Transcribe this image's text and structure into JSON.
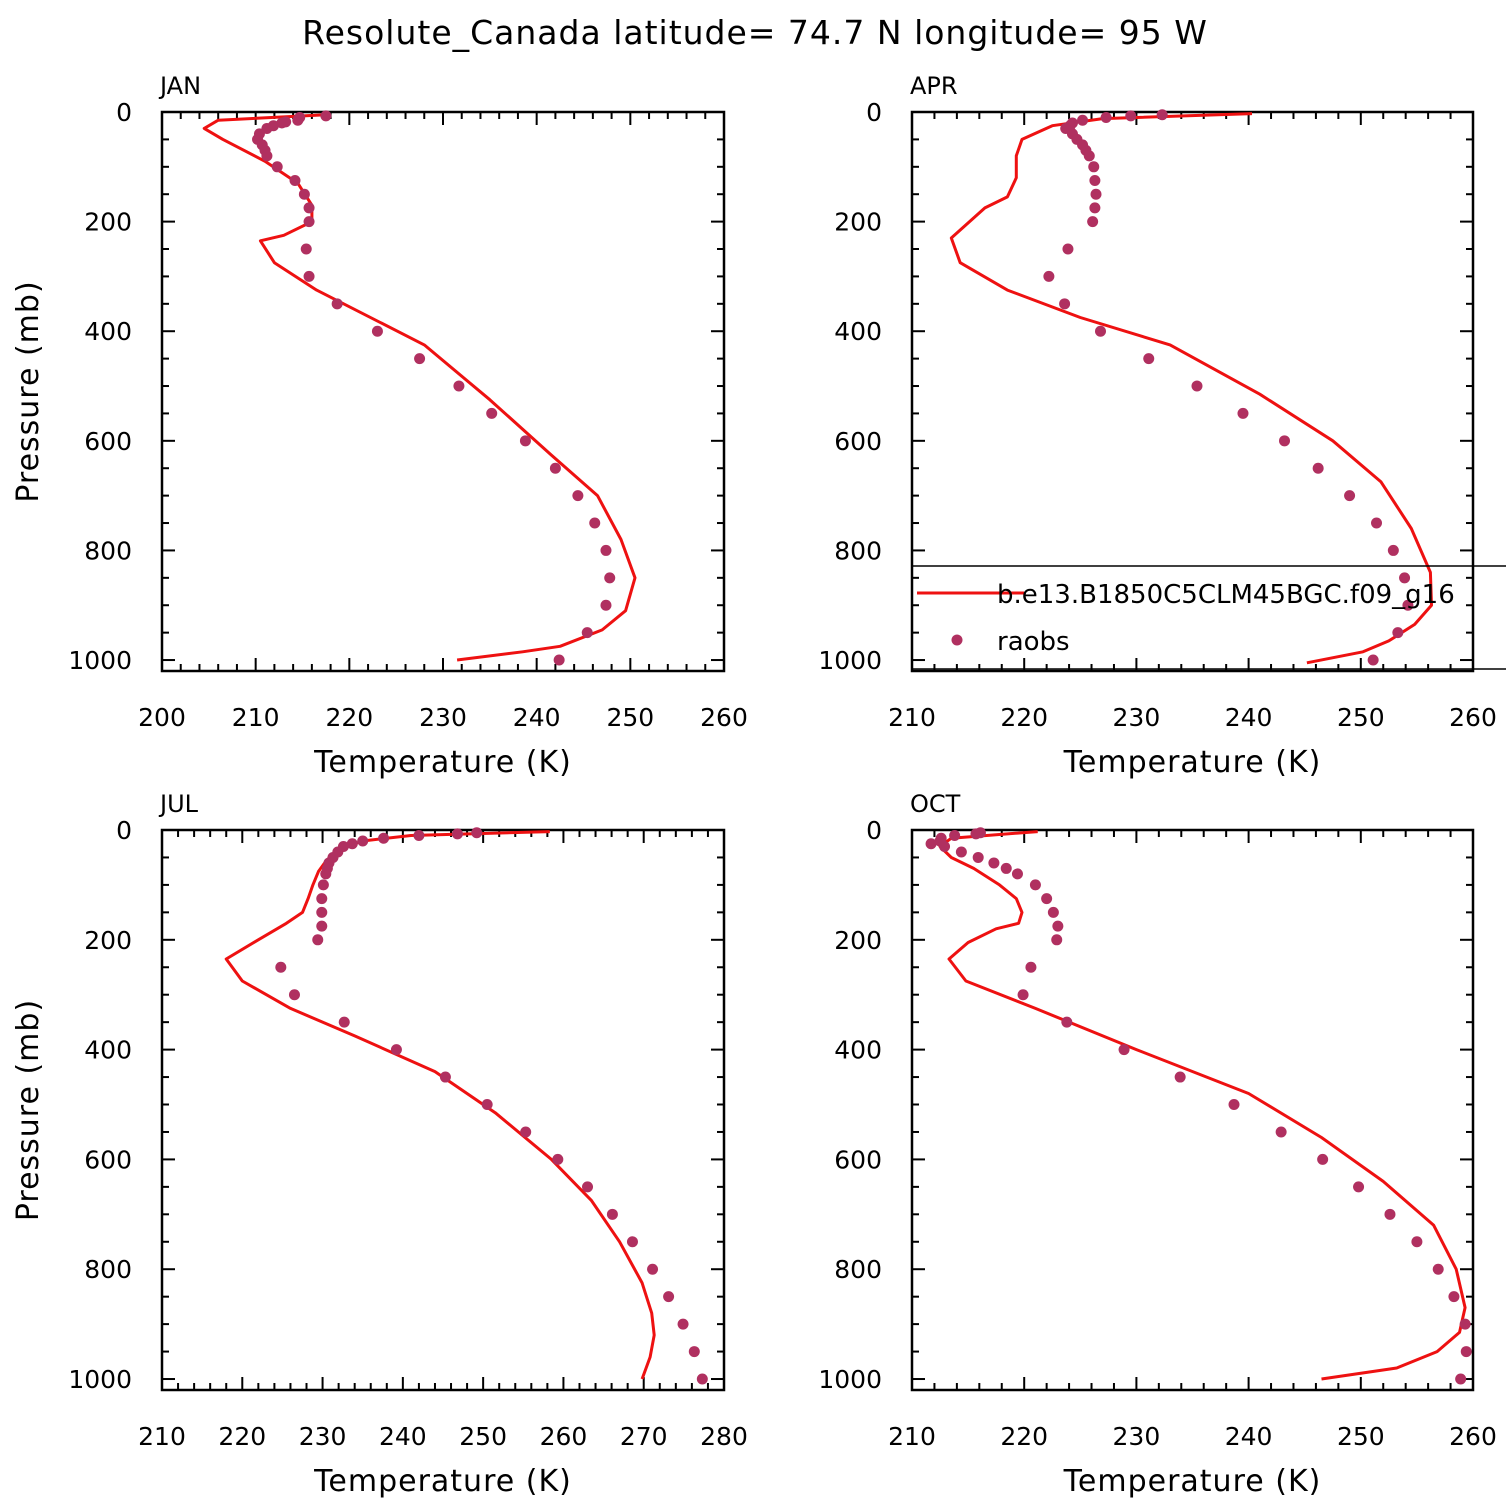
{
  "title": "Resolute_Canada  latitude= 74.7 N longitude= 95 W",
  "colors": {
    "model": "#ee1111",
    "obs": "#b03060",
    "axis": "#000000"
  },
  "legend": {
    "entries": [
      "b.e13.B1850C5CLM45BGC.f09_g16",
      "raobs"
    ]
  },
  "chart_data": [
    {
      "type": "line",
      "panel": "JAN",
      "title": "JAN",
      "xlabel": "Temperature (K)",
      "ylabel": "Pressure (mb)",
      "xlim": [
        200,
        260
      ],
      "ylim": [
        1020,
        0
      ],
      "xticks": [
        "200",
        "210",
        "220",
        "230",
        "240",
        "250",
        "260"
      ],
      "yticks": [
        "0",
        "200",
        "400",
        "600",
        "800",
        "1000"
      ],
      "series": [
        {
          "name": "b.e13.B1850C5CLM45BGC.f09_g16",
          "kind": "line",
          "x": [
            217.5,
            206,
            204.5,
            206.5,
            211,
            214.5,
            216,
            216,
            213,
            210.5,
            212,
            216.5,
            228,
            235,
            241.5,
            246.5,
            249,
            250.5,
            249.5,
            247,
            242.5,
            238.5,
            231.5
          ],
          "y": [
            5,
            15,
            30,
            50,
            90,
            130,
            170,
            200,
            225,
            235,
            275,
            325,
            425,
            525,
            625,
            700,
            780,
            850,
            910,
            945,
            975,
            985,
            1000
          ]
        },
        {
          "name": "raobs",
          "kind": "scatter",
          "x": [
            217.5,
            214.7,
            214.5,
            213.2,
            212.8,
            211.9,
            211.2,
            210.4,
            210.2,
            210.7,
            211.0,
            211.2,
            212.3,
            214.2,
            215.2,
            215.7,
            215.7,
            215.4,
            215.7,
            218.7,
            223.0,
            227.5,
            231.7,
            235.2,
            238.8,
            242.0,
            244.4,
            246.2,
            247.4,
            247.8,
            247.4,
            245.4,
            242.4
          ],
          "y": [
            7,
            10,
            15,
            18,
            20,
            25,
            30,
            40,
            50,
            60,
            70,
            80,
            100,
            125,
            150,
            175,
            200,
            250,
            300,
            350,
            400,
            450,
            500,
            550,
            600,
            650,
            700,
            750,
            800,
            850,
            900,
            950,
            1000
          ]
        }
      ]
    },
    {
      "type": "line",
      "panel": "APR",
      "title": "APR",
      "xlabel": "Temperature (K)",
      "ylabel": "",
      "xlim": [
        210,
        260
      ],
      "ylim": [
        1020,
        0
      ],
      "xticks": [
        "210",
        "220",
        "230",
        "240",
        "250",
        "260"
      ],
      "yticks": [
        "0",
        "200",
        "400",
        "600",
        "800",
        "1000"
      ],
      "series": [
        {
          "name": "b.e13.B1850C5CLM45BGC.f09_g16",
          "kind": "line",
          "x": [
            240.3,
            227,
            222.5,
            219.8,
            219.3,
            219.3,
            218.5,
            216.5,
            213.5,
            214.3,
            218.5,
            225,
            233,
            241,
            247.5,
            251.8,
            254.5,
            256.2,
            256.3,
            254.8,
            252.5,
            250.2,
            245.2
          ],
          "y": [
            3,
            12,
            25,
            50,
            80,
            120,
            155,
            175,
            230,
            275,
            325,
            375,
            425,
            515,
            600,
            675,
            760,
            840,
            900,
            935,
            965,
            985,
            1005
          ]
        },
        {
          "name": "raobs",
          "kind": "scatter",
          "x": [
            232.3,
            229.5,
            227.3,
            225.2,
            224.3,
            224.1,
            223.7,
            224.3,
            224.7,
            225.2,
            225.5,
            225.8,
            226.2,
            226.3,
            226.4,
            226.3,
            226.1,
            223.9,
            222.2,
            223.6,
            226.8,
            231.1,
            235.4,
            239.5,
            243.2,
            246.2,
            249.0,
            251.4,
            252.9,
            253.9,
            254.2,
            253.3,
            251.1
          ],
          "y": [
            5,
            7,
            10,
            15,
            20,
            25,
            30,
            40,
            50,
            60,
            70,
            80,
            100,
            125,
            150,
            175,
            200,
            250,
            300,
            350,
            400,
            450,
            500,
            550,
            600,
            650,
            700,
            750,
            800,
            850,
            900,
            950,
            1000
          ]
        }
      ]
    },
    {
      "type": "line",
      "panel": "JUL",
      "title": "JUL",
      "xlabel": "Temperature (K)",
      "ylabel": "Pressure (mb)",
      "xlim": [
        210,
        280
      ],
      "ylim": [
        1020,
        0
      ],
      "xticks": [
        "210",
        "220",
        "230",
        "240",
        "250",
        "260",
        "270",
        "280"
      ],
      "yticks": [
        "0",
        "200",
        "400",
        "600",
        "800",
        "1000"
      ],
      "series": [
        {
          "name": "b.e13.B1850C5CLM45BGC.f09_g16",
          "kind": "line",
          "x": [
            258.3,
            241,
            235,
            232,
            230.5,
            229.5,
            228.8,
            228.2,
            227.5,
            225.5,
            222,
            218,
            220,
            226,
            234,
            244,
            251.5,
            258.5,
            263.5,
            267,
            269.8,
            271,
            271.3,
            270.8,
            269.8
          ],
          "y": [
            3,
            10,
            20,
            35,
            55,
            75,
            100,
            125,
            150,
            170,
            200,
            235,
            275,
            325,
            375,
            440,
            515,
            600,
            675,
            750,
            825,
            880,
            920,
            960,
            1000
          ]
        },
        {
          "name": "raobs",
          "kind": "scatter",
          "x": [
            249.2,
            246.8,
            242.0,
            237.6,
            235.0,
            233.7,
            232.6,
            231.9,
            231.3,
            230.8,
            230.6,
            230.4,
            230.1,
            229.9,
            229.9,
            229.9,
            229.4,
            224.8,
            226.5,
            232.7,
            239.2,
            245.3,
            250.5,
            255.3,
            259.3,
            263.0,
            266.1,
            268.6,
            271.1,
            273.1,
            274.9,
            276.3,
            277.3
          ],
          "y": [
            5,
            7,
            10,
            15,
            20,
            25,
            30,
            40,
            50,
            60,
            70,
            80,
            100,
            125,
            150,
            175,
            200,
            250,
            300,
            350,
            400,
            450,
            500,
            550,
            600,
            650,
            700,
            750,
            800,
            850,
            900,
            950,
            1000
          ]
        }
      ]
    },
    {
      "type": "line",
      "panel": "OCT",
      "title": "OCT",
      "xlabel": "Temperature (K)",
      "ylabel": "",
      "xlim": [
        210,
        260
      ],
      "ylim": [
        1020,
        0
      ],
      "xticks": [
        "210",
        "220",
        "230",
        "240",
        "250",
        "260"
      ],
      "yticks": [
        "0",
        "200",
        "400",
        "600",
        "800",
        "1000"
      ],
      "series": [
        {
          "name": "b.e13.B1850C5CLM45BGC.f09_g16",
          "kind": "line",
          "x": [
            221.2,
            213.5,
            212.5,
            213.5,
            215.5,
            217.8,
            219.3,
            219.8,
            219.5,
            217.5,
            215,
            213.3,
            214.8,
            221,
            230,
            240,
            246.5,
            252,
            256.5,
            258.5,
            259.3,
            258.8,
            256.8,
            253.2,
            246.5
          ],
          "y": [
            3,
            15,
            30,
            50,
            70,
            100,
            125,
            150,
            170,
            180,
            205,
            235,
            275,
            325,
            400,
            480,
            560,
            640,
            720,
            800,
            870,
            915,
            950,
            980,
            1000
          ]
        },
        {
          "name": "raobs",
          "kind": "scatter",
          "x": [
            216.1,
            215.7,
            213.8,
            212.6,
            212.5,
            211.7,
            212.9,
            214.4,
            215.9,
            217.3,
            218.4,
            219.4,
            221.0,
            222.0,
            222.6,
            223.0,
            222.9,
            220.6,
            219.9,
            223.8,
            228.9,
            233.9,
            238.7,
            242.9,
            246.6,
            249.8,
            252.6,
            255.0,
            256.9,
            258.3,
            259.3,
            259.4,
            258.9
          ],
          "y": [
            5,
            7,
            10,
            15,
            20,
            25,
            30,
            40,
            50,
            60,
            70,
            80,
            100,
            125,
            150,
            175,
            200,
            250,
            300,
            350,
            400,
            450,
            500,
            550,
            600,
            650,
            700,
            750,
            800,
            850,
            900,
            950,
            1000
          ]
        }
      ]
    }
  ]
}
